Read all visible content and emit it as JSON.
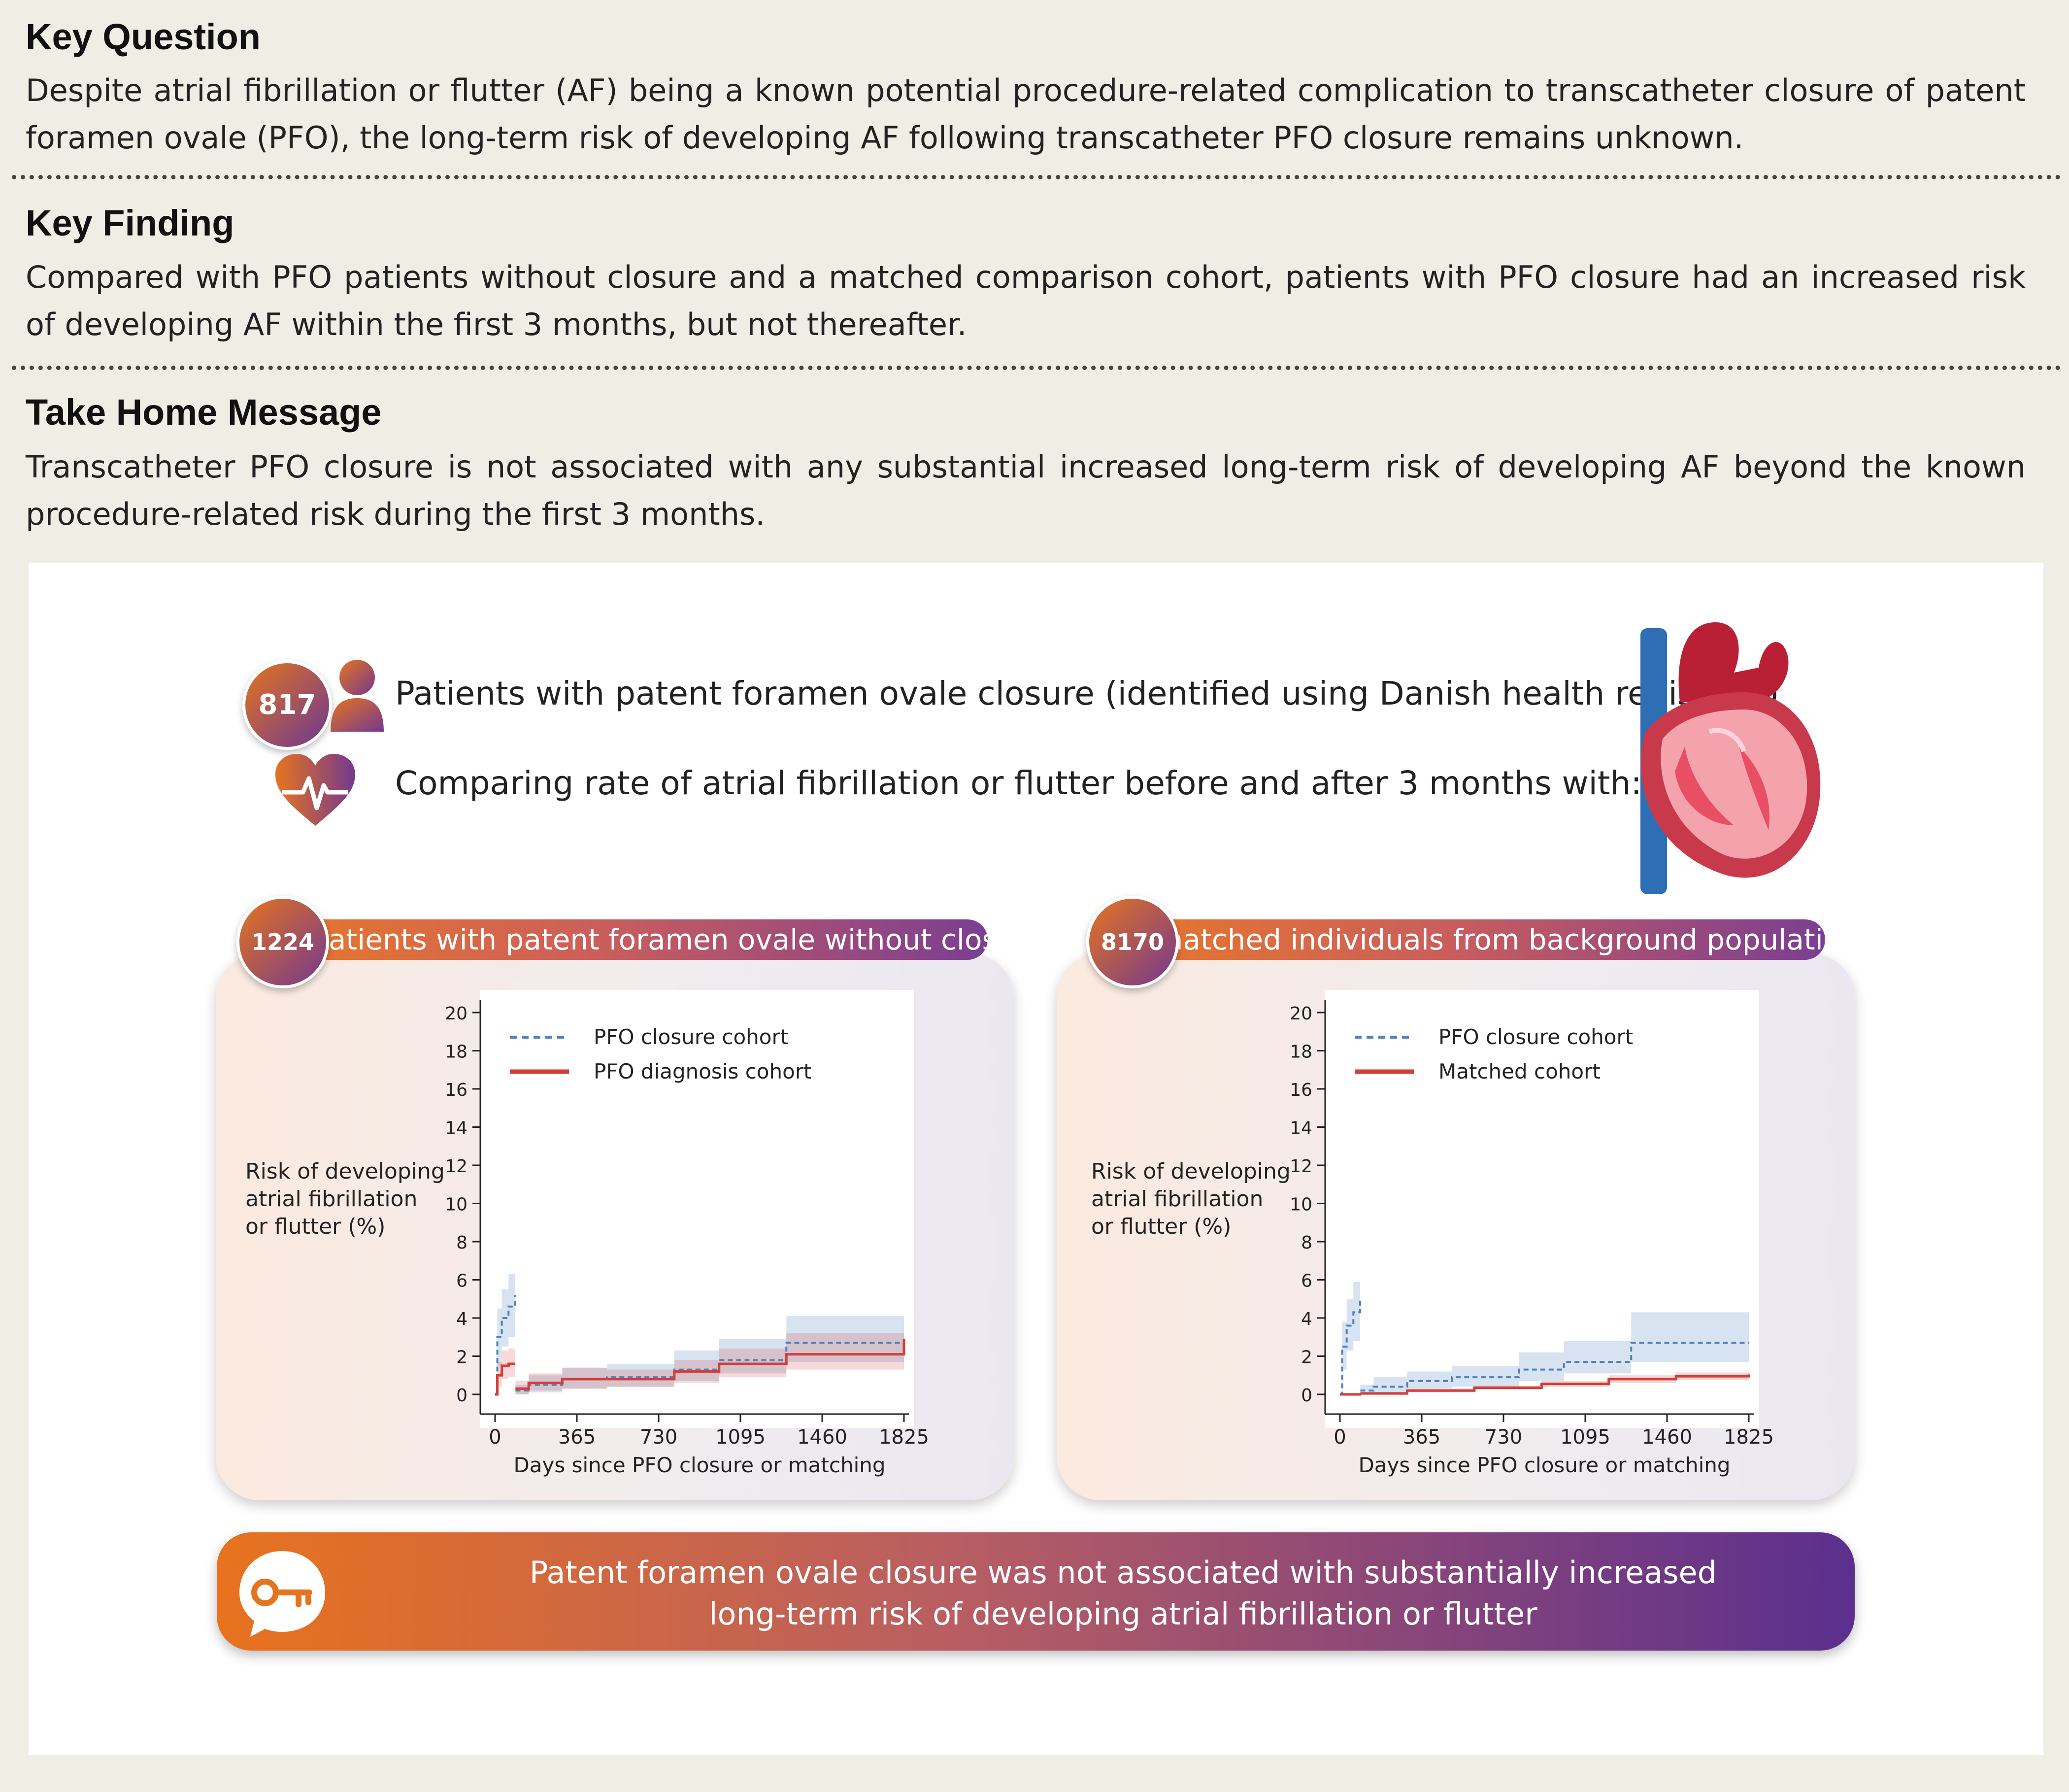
{
  "sections": [
    {
      "heading": "Key Question",
      "body": "Despite atrial fibrillation or flutter (AF) being a known potential procedure-related complication to transcatheter closure of patent foramen ovale (PFO), the long-term risk of developing AF following transcatheter PFO closure remains unknown."
    },
    {
      "heading": "Key Finding",
      "body": "Compared with PFO patients without closure and a matched comparison cohort, patients with PFO closure had an increased risk of developing AF within the first 3 months, but not thereafter."
    },
    {
      "heading": "Take Home Message",
      "body": "Transcatheter PFO closure is not associated with any substantial increased long-term risk of developing AF beyond the known procedure-related risk during the first 3 months."
    }
  ],
  "intro": {
    "count": "817",
    "patients_text": "Patients with patent foramen ovale closure (identified using Danish health registries)",
    "comparing_text": "Comparing rate of atrial fibrillation or flutter before and after 3 months with:"
  },
  "cards": [
    {
      "count": "1224",
      "label": "patients with patent foramen ovale without closure"
    },
    {
      "count": "8170",
      "label": "matched individuals from background population"
    }
  ],
  "y_axis_label": [
    "Risk of developing",
    "atrial fibrillation",
    "or flutter (%)"
  ],
  "conclusion": [
    "Patent foramen ovale closure was not associated with substantially increased",
    "long-term risk of developing atrial fibrillation or flutter"
  ],
  "icons": {
    "person": "person-icon",
    "heart": "heart-pulse-icon",
    "key": "key-icon",
    "anatomy": "heart-anatomy-icon"
  },
  "colors": {
    "closure": "#4f81bd",
    "comparison": "#d23f3a",
    "accent_orange": "#e5741f",
    "accent_purple": "#5b2f8e"
  },
  "chart_data": [
    {
      "type": "line",
      "title": "",
      "xlabel": "Days since PFO closure or matching",
      "ylabel": "Risk of developing atrial fibrillation or flutter (%)",
      "xlim": [
        0,
        1825
      ],
      "ylim": [
        0,
        20
      ],
      "xticks": [
        "0",
        "365",
        "730",
        "1095",
        "1460",
        "1825"
      ],
      "yticks": [
        "0",
        "2",
        "4",
        "6",
        "8",
        "10",
        "12",
        "14",
        "16",
        "18",
        "20"
      ],
      "legend_position": "top-left",
      "series": [
        {
          "name": "PFO closure cohort",
          "style": "dashed",
          "color": "#4f81bd",
          "early": {
            "x": [
              0,
              10,
              30,
              60,
              90
            ],
            "y": [
              0,
              3.0,
              4.0,
              4.6,
              5.2
            ],
            "lower": [
              0,
              1.5,
              2.5,
              3.0,
              3.5
            ],
            "upper": [
              0,
              4.5,
              5.5,
              6.3,
              7.0
            ]
          },
          "late": {
            "x": [
              91,
              150,
              300,
              500,
              800,
              1000,
              1300,
              1825
            ],
            "y": [
              0.2,
              0.5,
              0.8,
              0.9,
              1.3,
              1.8,
              2.7,
              2.7
            ],
            "lower": [
              0,
              0.1,
              0.3,
              0.4,
              0.7,
              1.1,
              1.7,
              1.6
            ],
            "upper": [
              0.5,
              1.0,
              1.4,
              1.6,
              2.3,
              2.9,
              4.1,
              4.1
            ]
          }
        },
        {
          "name": "PFO diagnosis cohort",
          "style": "solid",
          "color": "#d23f3a",
          "early": {
            "x": [
              0,
              10,
              30,
              60,
              90
            ],
            "y": [
              0,
              1.0,
              1.5,
              1.6,
              1.6
            ],
            "lower": [
              0,
              0.4,
              0.8,
              0.9,
              0.9
            ],
            "upper": [
              0,
              1.7,
              2.3,
              2.4,
              2.4
            ]
          },
          "late": {
            "x": [
              91,
              150,
              300,
              500,
              800,
              1000,
              1300,
              1825
            ],
            "y": [
              0.3,
              0.6,
              0.8,
              0.8,
              1.2,
              1.6,
              2.1,
              2.9
            ],
            "lower": [
              0,
              0.2,
              0.3,
              0.4,
              0.6,
              0.9,
              1.3,
              1.6
            ],
            "upper": [
              0.7,
              1.1,
              1.4,
              1.3,
              1.8,
              2.4,
              3.2,
              4.6
            ]
          }
        }
      ]
    },
    {
      "type": "line",
      "title": "",
      "xlabel": "Days since PFO closure or matching",
      "ylabel": "Risk of developing atrial fibrillation or flutter (%)",
      "xlim": [
        0,
        1825
      ],
      "ylim": [
        0,
        20
      ],
      "xticks": [
        "0",
        "365",
        "730",
        "1095",
        "1460",
        "1825"
      ],
      "yticks": [
        "0",
        "2",
        "4",
        "6",
        "8",
        "10",
        "12",
        "14",
        "16",
        "18",
        "20"
      ],
      "legend_position": "top-left",
      "series": [
        {
          "name": "PFO closure cohort",
          "style": "dashed",
          "color": "#4f81bd",
          "early": {
            "x": [
              0,
              10,
              30,
              60,
              90
            ],
            "y": [
              0,
              2.5,
              3.6,
              4.3,
              5.0
            ],
            "lower": [
              0,
              1.3,
              2.3,
              2.8,
              3.3
            ],
            "upper": [
              0,
              3.8,
              5.0,
              5.9,
              6.7
            ]
          },
          "late": {
            "x": [
              91,
              150,
              300,
              500,
              800,
              1000,
              1300,
              1825
            ],
            "y": [
              0.2,
              0.4,
              0.7,
              0.9,
              1.3,
              1.7,
              2.7,
              2.7
            ],
            "lower": [
              0,
              0.1,
              0.3,
              0.4,
              0.7,
              1.1,
              1.7,
              1.6
            ],
            "upper": [
              0.5,
              0.9,
              1.2,
              1.5,
              2.2,
              2.8,
              4.3,
              4.4
            ]
          }
        },
        {
          "name": "Matched cohort",
          "style": "solid",
          "color": "#d23f3a",
          "early": {
            "x": [
              0,
              90
            ],
            "y": [
              0,
              0.05
            ],
            "lower": [
              0,
              0
            ],
            "upper": [
              0,
              0.1
            ]
          },
          "late": {
            "x": [
              91,
              300,
              600,
              900,
              1200,
              1500,
              1825
            ],
            "y": [
              0.05,
              0.2,
              0.35,
              0.55,
              0.8,
              0.95,
              1.05
            ],
            "lower": [
              0,
              0.1,
              0.25,
              0.4,
              0.6,
              0.75,
              0.85
            ],
            "upper": [
              0.1,
              0.3,
              0.45,
              0.7,
              1.0,
              1.15,
              1.3
            ]
          }
        }
      ]
    }
  ]
}
